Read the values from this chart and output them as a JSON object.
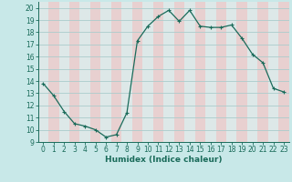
{
  "xlabel": "Humidex (Indice chaleur)",
  "x": [
    0,
    1,
    2,
    3,
    4,
    5,
    6,
    7,
    8,
    9,
    10,
    11,
    12,
    13,
    14,
    15,
    16,
    17,
    18,
    19,
    20,
    21,
    22,
    23
  ],
  "y": [
    13.8,
    12.8,
    11.5,
    10.5,
    10.3,
    10.0,
    9.4,
    9.6,
    11.4,
    17.3,
    18.5,
    19.3,
    19.8,
    18.9,
    19.8,
    18.5,
    18.4,
    18.4,
    18.6,
    17.5,
    16.2,
    15.5,
    13.4,
    13.1
  ],
  "line_color": "#1a6b5a",
  "bg_color": "#c8e8e8",
  "col_even_color": "#dde8e8",
  "col_odd_color": "#e8d0d0",
  "grid_color": "#aacccc",
  "xlim": [
    -0.5,
    23.5
  ],
  "ylim": [
    9,
    20.5
  ],
  "yticks": [
    9,
    10,
    11,
    12,
    13,
    14,
    15,
    16,
    17,
    18,
    19,
    20
  ],
  "xticks": [
    0,
    1,
    2,
    3,
    4,
    5,
    6,
    7,
    8,
    9,
    10,
    11,
    12,
    13,
    14,
    15,
    16,
    17,
    18,
    19,
    20,
    21,
    22,
    23
  ]
}
